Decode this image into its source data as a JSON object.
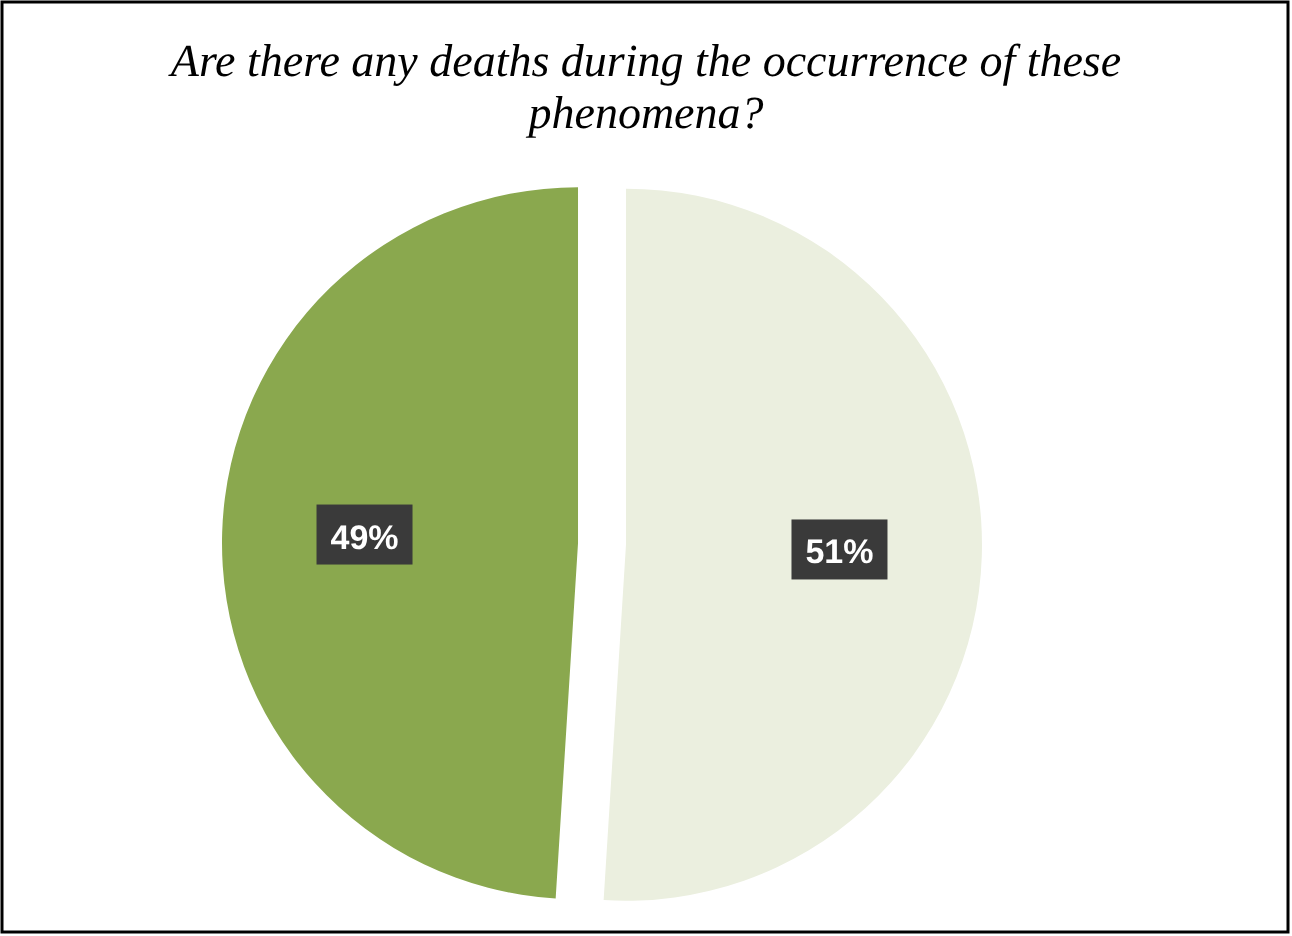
{
  "chart_data": {
    "type": "pie",
    "title": "Are there any deaths during the occurrence of these phenomena?",
    "categories": [
      null,
      null
    ],
    "values": [
      51,
      49
    ],
    "colors": [
      "#ebefdf",
      "#8aa84e"
    ],
    "value_labels": [
      "51%",
      "49%"
    ]
  }
}
